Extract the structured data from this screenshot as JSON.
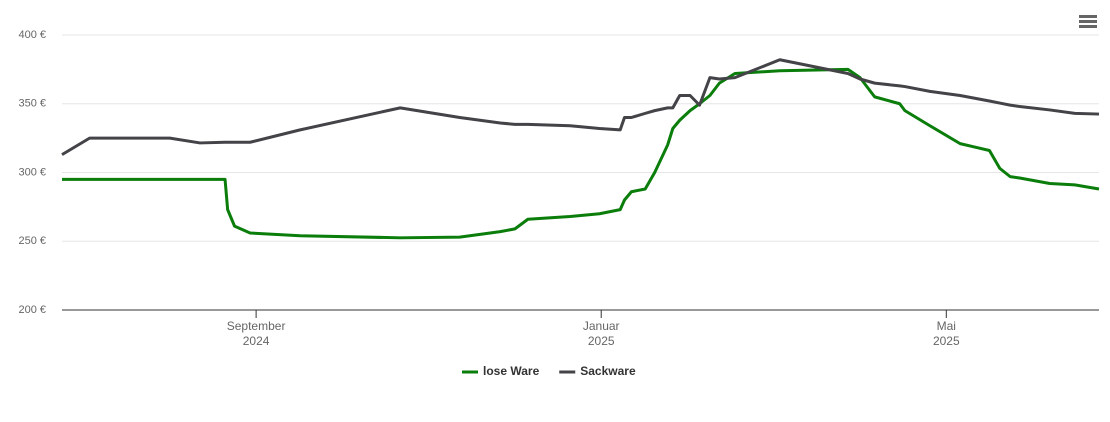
{
  "chart_data": {
    "type": "line",
    "x": [
      6.75,
      7.07,
      8.0,
      8.35,
      8.64,
      8.67,
      8.75,
      8.93,
      9.51,
      10.67,
      11.36,
      11.83,
      12.0,
      12.15,
      12.64,
      12.98,
      13.22,
      13.27,
      13.35,
      13.51,
      13.62,
      13.77,
      13.83,
      13.91,
      14.03,
      14.14,
      14.26,
      14.37,
      14.55,
      15.07,
      15.86,
      16.0,
      16.17,
      16.46,
      16.52,
      16.81,
      17.16,
      17.33,
      17.5,
      17.62,
      17.74,
      17.85,
      18.2,
      18.49,
      18.77
    ],
    "series": [
      {
        "name": "lose Ware",
        "color": "#0a7d0a",
        "values": [
          295,
          295,
          295,
          295,
          295,
          273,
          261,
          256,
          254,
          252.5,
          253,
          257,
          259,
          266,
          268,
          270,
          273,
          280,
          286,
          288,
          300,
          320,
          332,
          338,
          345,
          350,
          356,
          365,
          372,
          374,
          375,
          369,
          355,
          350,
          345,
          334,
          321,
          318.5,
          316,
          303,
          297,
          296,
          292,
          291,
          288
        ]
      },
      {
        "name": "Sackware",
        "color": "#434348",
        "values": [
          313,
          325,
          325,
          321.5,
          322,
          322,
          322,
          322,
          331,
          347,
          340,
          336,
          335,
          335,
          334,
          332,
          331,
          340,
          340,
          343,
          345,
          347,
          347,
          356,
          356,
          349,
          369,
          368,
          369,
          382,
          372,
          368,
          365,
          363,
          362.5,
          359,
          356,
          354,
          352,
          350.5,
          349,
          348,
          345.5,
          343,
          342.5
        ]
      }
    ],
    "xlim": [
      6.75,
      18.77
    ],
    "xticks": [
      {
        "value": 9,
        "label": "September\n2024"
      },
      {
        "value": 13,
        "label": "Januar\n2025"
      },
      {
        "value": 17,
        "label": "Mai\n2025"
      }
    ],
    "ylim": [
      200,
      400
    ],
    "yticks": [
      {
        "value": 200,
        "label": "200 €"
      },
      {
        "value": 250,
        "label": "250 €"
      },
      {
        "value": 300,
        "label": "300 €"
      },
      {
        "value": 350,
        "label": "350 €"
      },
      {
        "value": 400,
        "label": "400 €"
      }
    ],
    "grid": true
  }
}
